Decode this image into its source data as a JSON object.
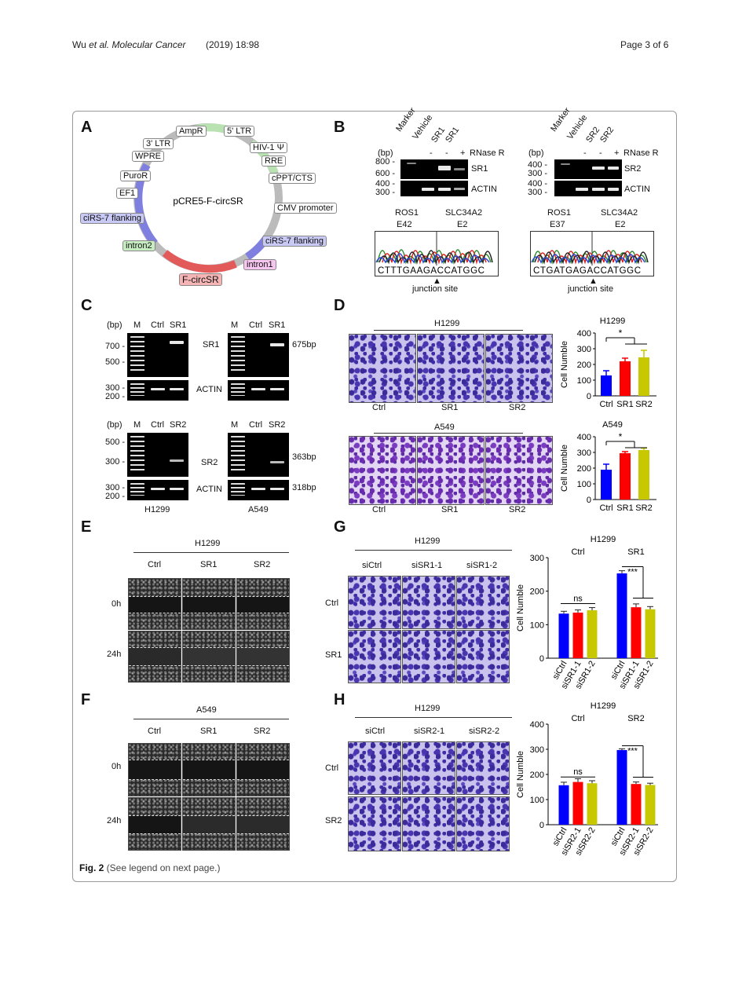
{
  "header": {
    "author": "Wu ",
    "etal": "et al.",
    "journal": "Molecular Cancer",
    "citation": "(2019) 18:98",
    "page": "Page 3 of 6"
  },
  "caption": {
    "fig": "Fig. 2",
    "text": " (See legend on next page.)"
  },
  "panelA": {
    "label": "A",
    "center": "pCRE5-F-circSR",
    "features": [
      "AmpR",
      "5' LTR",
      "HIV-1 Ψ",
      "RRE",
      "cPPT/CTS",
      "CMV promoter",
      "ciRS-7 flanking",
      "intron1",
      "F-circSR",
      "intron2",
      "ciRS-7 flanking",
      "EF1",
      "PuroR",
      "WPRE",
      "3' LTR"
    ]
  },
  "panelB": {
    "label": "B",
    "left": {
      "lanes": [
        "Marker",
        "Vehicle",
        "SR1",
        "SR1"
      ],
      "rnase": [
        "-",
        "-",
        "+",
        "RNase R"
      ],
      "bp": "(bp)",
      "ladder": [
        "800 -",
        "600 -",
        "400 -",
        "300 -"
      ],
      "rows": [
        "SR1",
        "ACTIN"
      ],
      "genes": [
        "ROS1",
        "SLC34A2"
      ],
      "exons": [
        "E42",
        "E2"
      ],
      "seq": "CTTTGAAGACCATGGC",
      "junction": "junction site"
    },
    "right": {
      "lanes": [
        "Marker",
        "Vehicle",
        "SR2",
        "SR2"
      ],
      "rnase": [
        "-",
        "-",
        "+",
        "RNase R"
      ],
      "bp": "(bp)",
      "ladder": [
        "400 -",
        "300 -",
        "400 -",
        "300 -"
      ],
      "rows": [
        "SR2",
        "ACTIN"
      ],
      "genes": [
        "ROS1",
        "SLC34A2"
      ],
      "exons": [
        "E37",
        "E2"
      ],
      "seq": "CTGATGAGACCATGGC",
      "junction": "junction site"
    }
  },
  "panelC": {
    "label": "C",
    "bp": "(bp)",
    "lanes1": [
      "M",
      "Ctrl",
      "SR1"
    ],
    "lanes2": [
      "M",
      "Ctrl",
      "SR2"
    ],
    "ladderTop1": [
      "700 -",
      "500 -"
    ],
    "ladderAct": [
      "300 -",
      "200 -"
    ],
    "ladderTop2": [
      "500 -",
      "300 -"
    ],
    "rows": [
      "SR1",
      "ACTIN",
      "SR2",
      "ACTIN"
    ],
    "sizes": [
      "675bp",
      "363bp",
      "318bp"
    ],
    "cells": [
      "H1299",
      "A549"
    ]
  },
  "panelD": {
    "label": "D",
    "titles": [
      "H1299",
      "A549"
    ],
    "xlabels": [
      "Ctrl",
      "SR1",
      "SR2"
    ],
    "sig": "*"
  },
  "panelE": {
    "label": "E",
    "title": "H1299",
    "cols": [
      "Ctrl",
      "SR1",
      "SR2"
    ],
    "rows": [
      "0h",
      "24h"
    ]
  },
  "panelF": {
    "label": "F",
    "title": "A549",
    "cols": [
      "Ctrl",
      "SR1",
      "SR2"
    ],
    "rows": [
      "0h",
      "24h"
    ]
  },
  "panelG": {
    "label": "G",
    "title": "H1299",
    "cols": [
      "siCtrl",
      "siSR1-1",
      "siSR1-2"
    ],
    "rows": [
      "Ctrl",
      "SR1"
    ]
  },
  "panelH": {
    "label": "H",
    "title": "H1299",
    "cols": [
      "siCtrl",
      "siSR2-1",
      "siSR2-2"
    ],
    "rows": [
      "Ctrl",
      "SR2"
    ]
  },
  "colors": {
    "blue": "#0000ff",
    "red": "#ff0000",
    "olive": "#c8c800"
  },
  "chart_data": [
    {
      "type": "bar",
      "title": "H1299",
      "ylabel": "Cell Numble",
      "categories": [
        "Ctrl",
        "SR1",
        "SR2"
      ],
      "values": [
        130,
        220,
        245
      ],
      "errors": [
        30,
        20,
        45
      ],
      "ylim": [
        0,
        400
      ],
      "yticks": [
        0,
        100,
        200,
        300,
        400
      ],
      "annotation": "*"
    },
    {
      "type": "bar",
      "title": "A549",
      "ylabel": "Cell Numble",
      "categories": [
        "Ctrl",
        "SR1",
        "SR2"
      ],
      "values": [
        190,
        295,
        315
      ],
      "errors": [
        35,
        10,
        12
      ],
      "ylim": [
        0,
        400
      ],
      "yticks": [
        0,
        100,
        200,
        300,
        400
      ],
      "annotation": "*"
    },
    {
      "type": "bar",
      "title": "H1299",
      "ylabel": "Cell Numble",
      "groups": [
        "Ctrl",
        "SR1"
      ],
      "categories": [
        "siCtrl",
        "siSR1-1",
        "siSR1-2"
      ],
      "series": [
        {
          "name": "Ctrl",
          "values": [
            133,
            136,
            143
          ],
          "errors": [
            7,
            8,
            8
          ]
        },
        {
          "name": "SR1",
          "values": [
            253,
            152,
            146
          ],
          "errors": [
            8,
            10,
            8
          ]
        }
      ],
      "ylim": [
        0,
        300
      ],
      "yticks": [
        0,
        100,
        200,
        300
      ],
      "annotations": [
        "ns",
        "***"
      ]
    },
    {
      "type": "bar",
      "title": "H1299",
      "ylabel": "Cell Numble",
      "groups": [
        "Ctrl",
        "SR2"
      ],
      "categories": [
        "siCtrl",
        "siSR2-1",
        "siSR2-2"
      ],
      "series": [
        {
          "name": "Ctrl",
          "values": [
            157,
            170,
            165
          ],
          "errors": [
            12,
            13,
            10
          ]
        },
        {
          "name": "SR2",
          "values": [
            297,
            162,
            158
          ],
          "errors": [
            5,
            8,
            7
          ]
        }
      ],
      "ylim": [
        0,
        400
      ],
      "yticks": [
        0,
        100,
        200,
        300,
        400
      ],
      "annotations": [
        "ns",
        "***"
      ]
    }
  ]
}
